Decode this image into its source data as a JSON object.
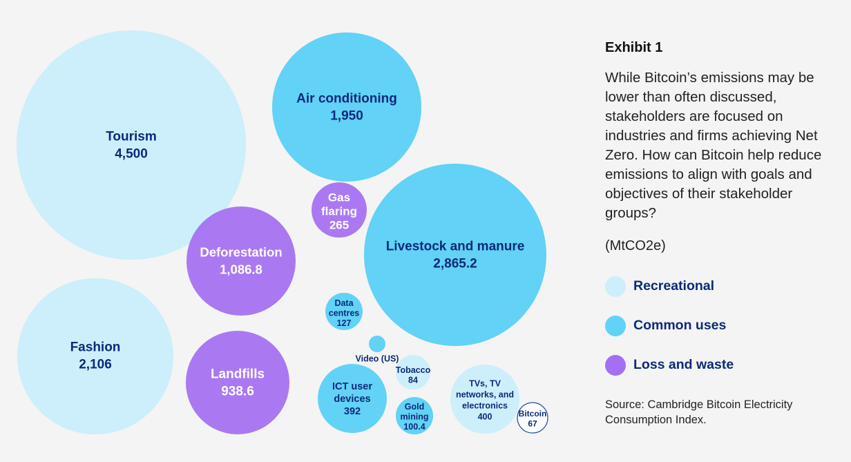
{
  "exhibit_title": "Exhibit 1",
  "description": "While Bitcoin’s emissions may be lower than often discussed, stakeholders are focused on industries and firms achieving Net Zero. How can Bitcoin help reduce emissions to align with goals and objectives of their stakeholder groups?",
  "unit": "(MtCO2e)",
  "source": "Source: Cambridge Bitcoin Electricity Consumption Index.",
  "colors": {
    "recreational": "#cdeefb",
    "common_uses": "#62d2f6",
    "loss_and_waste": "#a46ff0",
    "label_dark": "#0b2a7a",
    "label_light": "#ffffff",
    "bitcoin_outline": "#1e4e9c"
  },
  "legend": [
    {
      "label": "Recreational",
      "color": "#cdeefb"
    },
    {
      "label": "Common uses",
      "color": "#62d2f6"
    },
    {
      "label": "Loss and waste",
      "color": "#a46ff0"
    }
  ],
  "chart_data": {
    "type": "bubble",
    "unit": "MtCO2e",
    "bubbles": [
      {
        "name": "Tourism",
        "label_lines": [
          "Tourism"
        ],
        "value": 4500,
        "value_label": "4,500",
        "category": "Recreational"
      },
      {
        "name": "Air conditioning",
        "label_lines": [
          "Air conditioning"
        ],
        "value": 1950,
        "value_label": "1,950",
        "category": "Common uses"
      },
      {
        "name": "Gas flaring",
        "label_lines": [
          "Gas",
          "flaring"
        ],
        "value": 265,
        "value_label": "265",
        "category": "Loss and waste"
      },
      {
        "name": "Deforestation",
        "label_lines": [
          "Deforestation"
        ],
        "value": 1086.8,
        "value_label": "1,086.8",
        "category": "Loss and waste"
      },
      {
        "name": "Livestock and manure",
        "label_lines": [
          "Livestock and manure"
        ],
        "value": 2865.2,
        "value_label": "2,865.2",
        "category": "Common uses"
      },
      {
        "name": "Data centres",
        "label_lines": [
          "Data",
          "centres"
        ],
        "value": 127,
        "value_label": "127",
        "category": "Common uses"
      },
      {
        "name": "Fashion",
        "label_lines": [
          "Fashion"
        ],
        "value": 2106,
        "value_label": "2,106",
        "category": "Recreational"
      },
      {
        "name": "Landfills",
        "label_lines": [
          "Landfills"
        ],
        "value": 938.6,
        "value_label": "938.6",
        "category": "Loss and waste"
      },
      {
        "name": "Video (US)",
        "label_lines": [
          "Video (US)"
        ],
        "value": null,
        "value_label": "",
        "category": "Common uses"
      },
      {
        "name": "Tobacco",
        "label_lines": [
          "Tobacco"
        ],
        "value": 84,
        "value_label": "84",
        "category": "Recreational"
      },
      {
        "name": "ICT user devices",
        "label_lines": [
          "ICT user",
          "devices"
        ],
        "value": 392,
        "value_label": "392",
        "category": "Common uses"
      },
      {
        "name": "Gold mining",
        "label_lines": [
          "Gold",
          "mining"
        ],
        "value": 100.4,
        "value_label": "100.4",
        "category": "Common uses"
      },
      {
        "name": "TVs, TV networks, and electronics",
        "label_lines": [
          "TVs, TV",
          "networks, and",
          "electronics"
        ],
        "value": 400,
        "value_label": "400",
        "category": "Recreational"
      },
      {
        "name": "Bitcoin",
        "label_lines": [
          "Bitcoin"
        ],
        "value": 67,
        "value_label": "67",
        "category": "Bitcoin"
      }
    ]
  }
}
